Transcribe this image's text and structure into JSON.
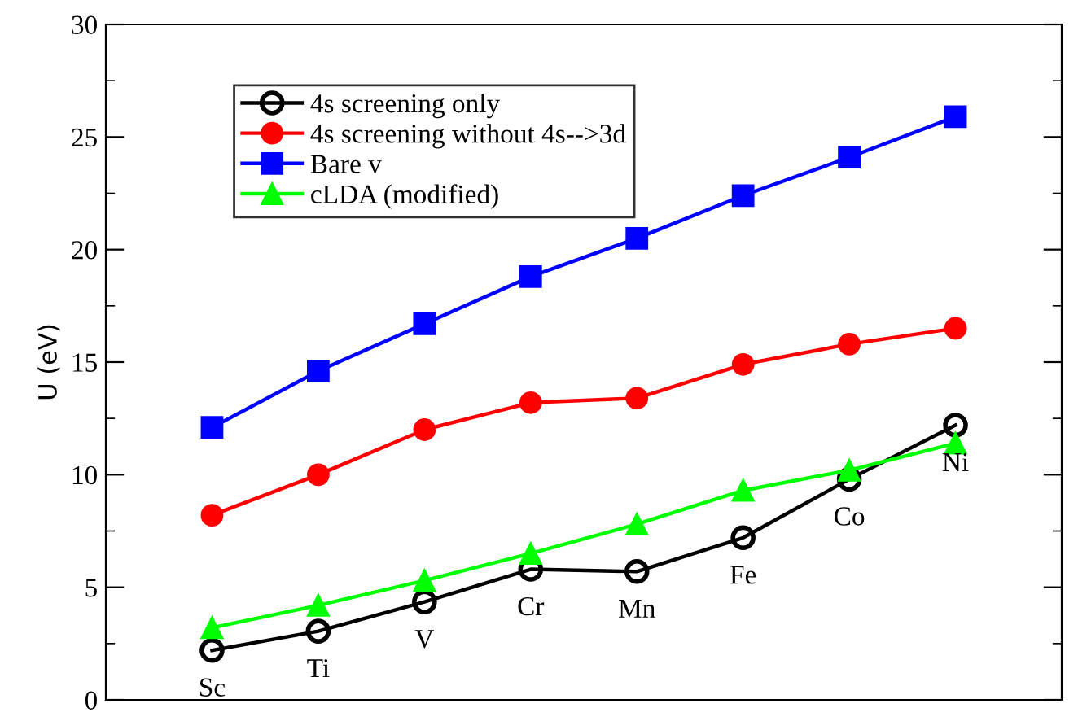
{
  "chart_data": {
    "type": "line",
    "ylabel": "U (eV)",
    "categories": [
      null,
      null,
      null,
      null,
      null,
      null,
      null,
      null
    ],
    "ylim": [
      0,
      30
    ],
    "yticks": [
      0,
      5,
      10,
      15,
      20,
      25,
      30
    ],
    "grid": false,
    "legend": "top left",
    "tick_labels": "y",
    "series": [
      {
        "name": "4s screening only",
        "color": "#000000",
        "marker": "circle",
        "values": [
          2.2,
          3.05,
          4.35,
          5.8,
          5.7,
          7.2,
          9.8,
          12.2
        ]
      },
      {
        "name": "4s screening without 4s-->3d",
        "color": "#ff0000",
        "marker": "circle",
        "values": [
          8.2,
          10.0,
          12.0,
          13.2,
          13.4,
          14.9,
          15.8,
          16.5
        ]
      },
      {
        "name": "Bare v",
        "color": "#0000ff",
        "marker": "square",
        "values": [
          12.1,
          14.6,
          16.7,
          18.8,
          20.5,
          22.4,
          24.1,
          25.9
        ]
      },
      {
        "name": "cLDA (modified)",
        "color": "#00ff00",
        "marker": "triangle",
        "values": [
          3.2,
          4.2,
          5.3,
          6.5,
          7.8,
          9.3,
          10.2,
          11.4
        ]
      }
    ],
    "annotations": [
      {
        "text": "Sc",
        "y": 2.2
      },
      {
        "text": "Ti",
        "y": 3.05
      },
      {
        "text": "V",
        "y": 4.35
      },
      {
        "text": "Cr",
        "y": 5.8
      },
      {
        "text": "Mn",
        "y": 5.7
      },
      {
        "text": "Fe",
        "y": 7.2
      },
      {
        "text": "Co",
        "y": 9.8
      },
      {
        "text": "Ni",
        "y": 12.2
      }
    ]
  }
}
